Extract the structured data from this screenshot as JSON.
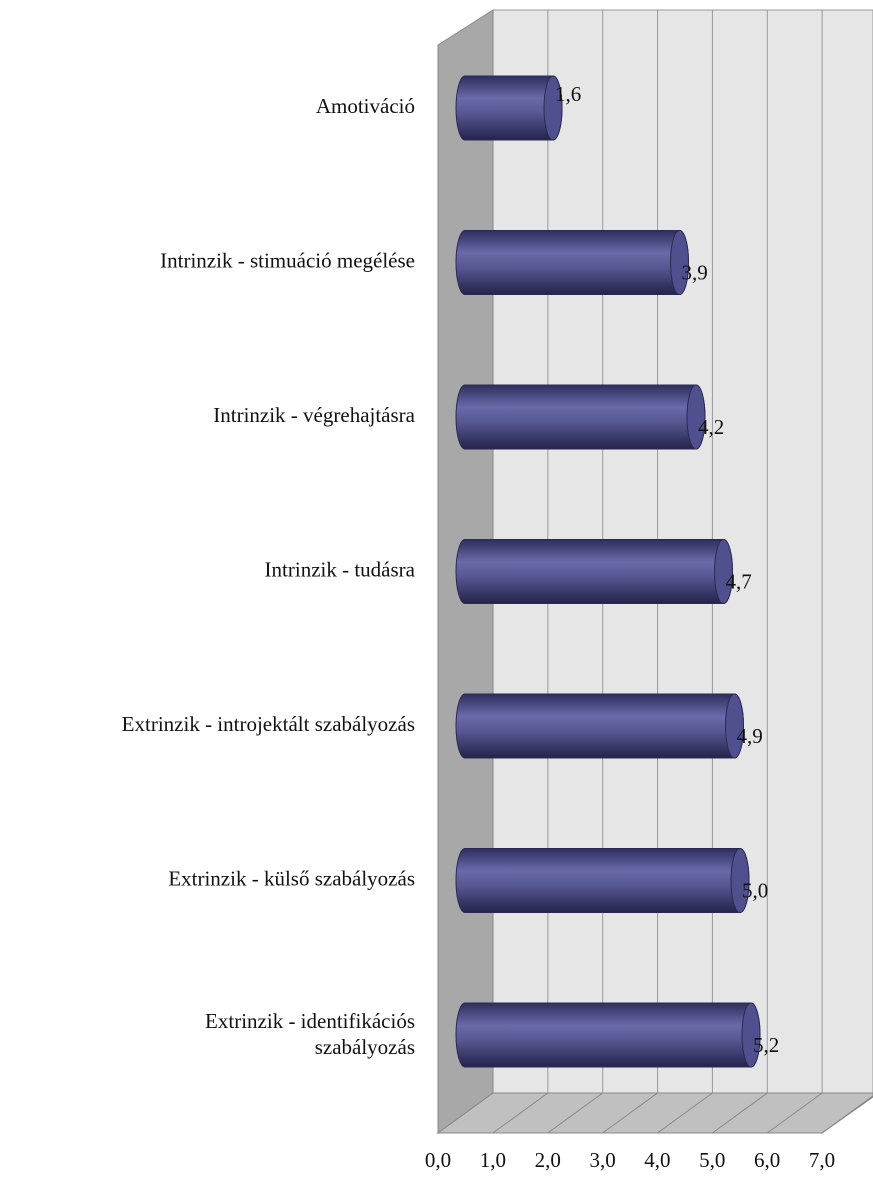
{
  "chart_data": {
    "type": "bar",
    "orientation": "horizontal",
    "categories": [
      "Amotiváció",
      "Intrinzik - stimuáció megélése",
      "Intrinzik - végrehajtásra",
      "Intrinzik - tudásra",
      "Extrinzik - introjektált szabályozás",
      "Extrinzik - külső szabályozás",
      "Extrinzik - identifikációs szabályozás"
    ],
    "values": [
      1.6,
      3.9,
      4.2,
      4.7,
      4.9,
      5.0,
      5.2
    ],
    "value_labels": [
      "1,6",
      "3,9",
      "4,2",
      "4,7",
      "4,9",
      "5,0",
      "5,2"
    ],
    "color": "#50508f",
    "xlim": [
      0,
      7
    ],
    "xticks": [
      {
        "value": 0,
        "label": "0,0"
      },
      {
        "value": 1,
        "label": "1,0"
      },
      {
        "value": 2,
        "label": "2,0"
      },
      {
        "value": 3,
        "label": "3,0"
      },
      {
        "value": 4,
        "label": "4,0"
      },
      {
        "value": 5,
        "label": "5,0"
      },
      {
        "value": 6,
        "label": "6,0"
      },
      {
        "value": 7,
        "label": "7,0"
      }
    ],
    "grid": true
  }
}
